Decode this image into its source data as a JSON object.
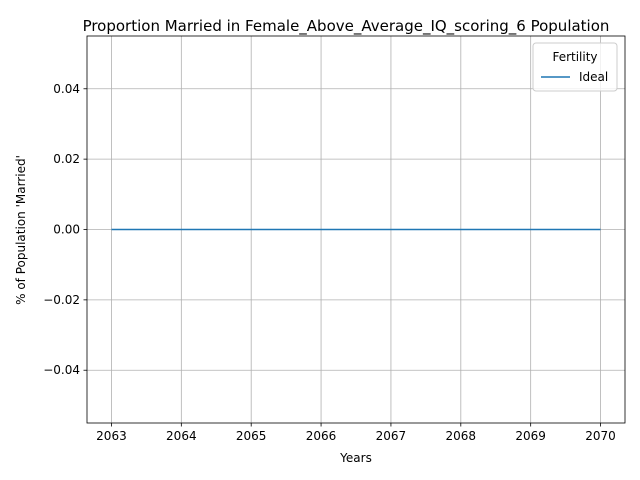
{
  "chart_data": {
    "type": "line",
    "title": "Proportion Married in Female_Above_Average_IQ_scoring_6 Population",
    "xlabel": "Years",
    "ylabel": "% of Population 'Married'",
    "x": [
      2063,
      2064,
      2065,
      2066,
      2067,
      2068,
      2069,
      2070
    ],
    "x_ticks": [
      "2063",
      "2064",
      "2065",
      "2066",
      "2067",
      "2068",
      "2069",
      "2070"
    ],
    "xlim": [
      2062.65,
      2070.35
    ],
    "y_ticks": [
      -0.04,
      -0.02,
      0.0,
      0.02,
      0.04
    ],
    "y_tick_labels": [
      "−0.04",
      "−0.02",
      "0.00",
      "0.02",
      "0.04"
    ],
    "ylim": [
      -0.055,
      0.055
    ],
    "grid": true,
    "legend": {
      "title": "Fertility",
      "placement": "top-right"
    },
    "series": [
      {
        "name": "Ideal",
        "color": "#1f77b4",
        "values": [
          0,
          0,
          0,
          0,
          0,
          0,
          0,
          0
        ]
      }
    ]
  }
}
